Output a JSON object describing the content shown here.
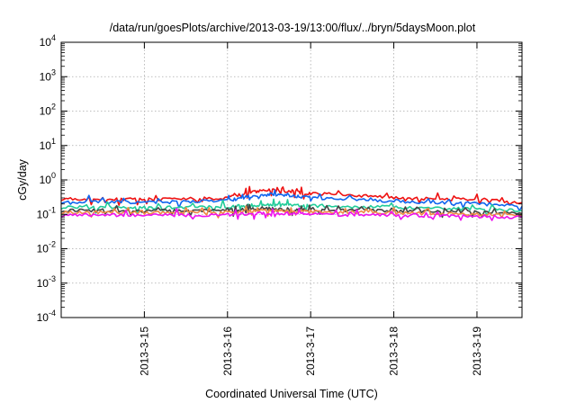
{
  "chart_data": {
    "type": "line",
    "title": "/data/run/goesPlots/archive/2013-03-19/13:00/flux/../bryn/5daysMoon.plot",
    "xlabel": "Coordinated Universal Time (UTC)",
    "ylabel": "cGy/day",
    "yscale": "log",
    "ylim": [
      0.0001,
      10000
    ],
    "xlim": [
      "2013-03-14 00:00",
      "2013-03-19 13:00"
    ],
    "grid": true,
    "y_ticks": [
      {
        "base": "10",
        "exp": "4"
      },
      {
        "base": "10",
        "exp": "3"
      },
      {
        "base": "10",
        "exp": "2"
      },
      {
        "base": "10",
        "exp": "1"
      },
      {
        "base": "10",
        "exp": "0"
      },
      {
        "base": "10",
        "exp": "-1"
      },
      {
        "base": "10",
        "exp": "-2"
      },
      {
        "base": "10",
        "exp": "-3"
      },
      {
        "base": "10",
        "exp": "-4"
      }
    ],
    "x_ticks": [
      "2013-3-15",
      "2013-3-16",
      "2013-3-17",
      "2013-3-18",
      "2013-3-19"
    ],
    "x": [
      "2013-03-14 00:00",
      "2013-03-14 12:00",
      "2013-03-15 00:00",
      "2013-03-15 12:00",
      "2013-03-16 00:00",
      "2013-03-16 06:00",
      "2013-03-16 12:00",
      "2013-03-16 18:00",
      "2013-03-17 00:00",
      "2013-03-17 12:00",
      "2013-03-18 00:00",
      "2013-03-18 12:00",
      "2013-03-19 00:00",
      "2013-03-19 13:00"
    ],
    "series": [
      {
        "color": "#ee1111",
        "values": [
          0.28,
          0.28,
          0.27,
          0.28,
          0.3,
          0.42,
          0.5,
          0.45,
          0.4,
          0.36,
          0.3,
          0.28,
          0.27,
          0.22
        ]
      },
      {
        "color": "#1166ee",
        "values": [
          0.23,
          0.23,
          0.22,
          0.23,
          0.25,
          0.33,
          0.38,
          0.35,
          0.31,
          0.28,
          0.24,
          0.22,
          0.21,
          0.17
        ]
      },
      {
        "color": "#22cc99",
        "values": [
          0.16,
          0.16,
          0.155,
          0.16,
          0.165,
          0.18,
          0.19,
          0.18,
          0.175,
          0.165,
          0.16,
          0.15,
          0.145,
          0.13
        ]
      },
      {
        "color": "#444444",
        "values": [
          0.13,
          0.13,
          0.125,
          0.13,
          0.13,
          0.14,
          0.145,
          0.14,
          0.135,
          0.13,
          0.125,
          0.12,
          0.115,
          0.105
        ]
      },
      {
        "color": "#ee8844",
        "values": [
          0.115,
          0.115,
          0.11,
          0.115,
          0.115,
          0.125,
          0.13,
          0.125,
          0.12,
          0.115,
          0.11,
          0.105,
          0.1,
          0.095
        ]
      },
      {
        "color": "#ee11ee",
        "values": [
          0.095,
          0.095,
          0.093,
          0.095,
          0.097,
          0.105,
          0.11,
          0.105,
          0.1,
          0.097,
          0.093,
          0.09,
          0.087,
          0.082
        ]
      }
    ]
  }
}
